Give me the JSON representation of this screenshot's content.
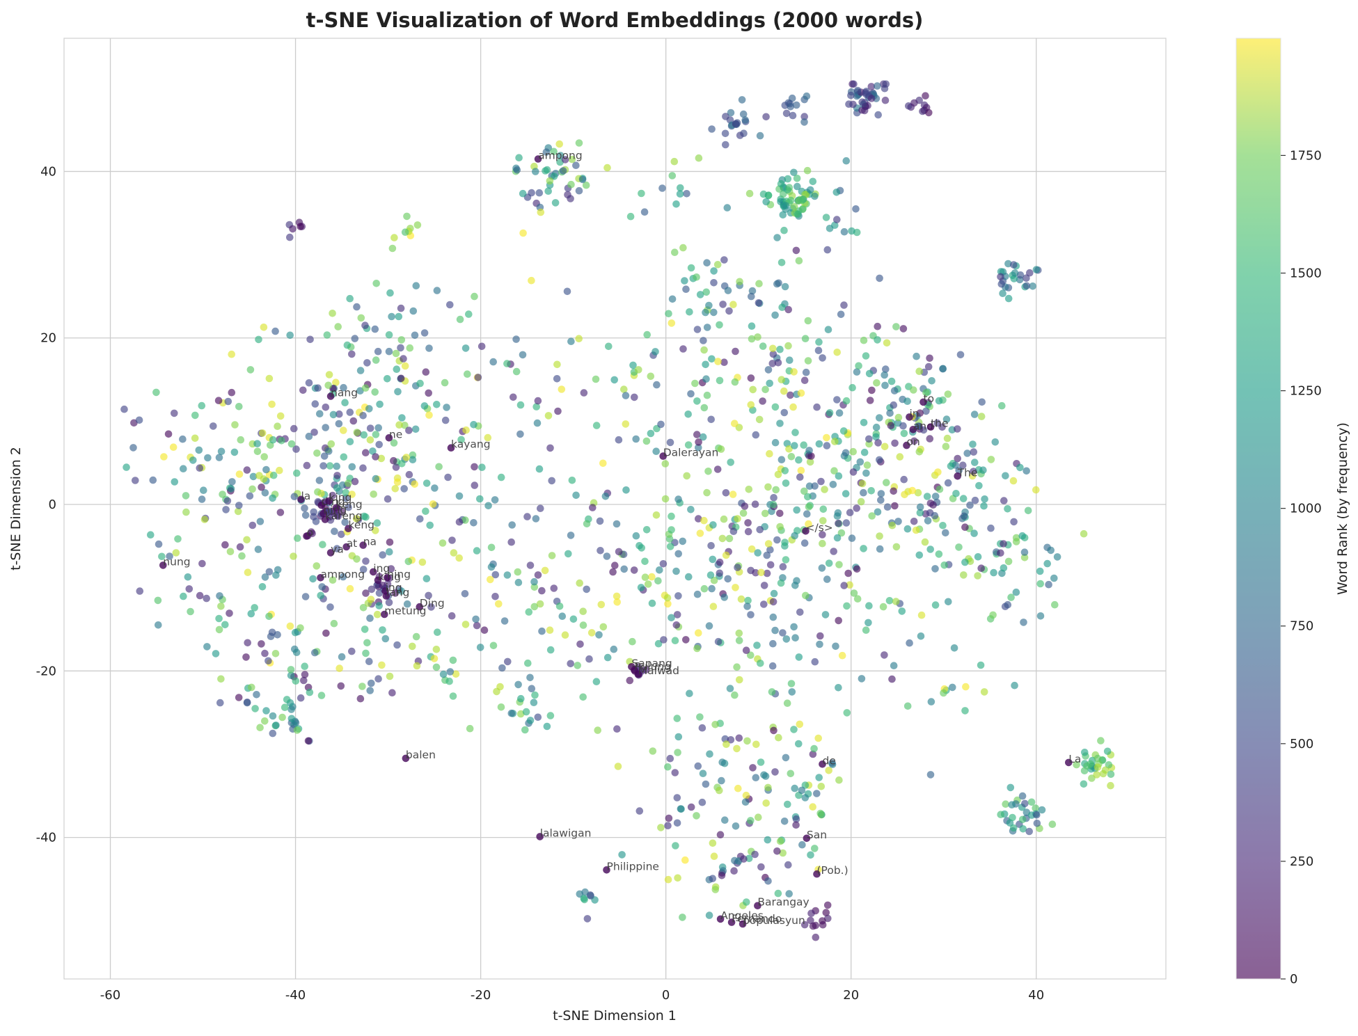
{
  "chart_data": {
    "type": "scatter",
    "title": "t-SNE Visualization of Word Embeddings (2000 words)",
    "xlabel": "t-SNE Dimension 1",
    "ylabel": "t-SNE Dimension 2",
    "xlim": [
      -65,
      54
    ],
    "ylim": [
      -57,
      56
    ],
    "xticks": [
      -60,
      -40,
      -20,
      0,
      20,
      40
    ],
    "yticks": [
      -40,
      -20,
      0,
      20,
      40
    ],
    "grid": true,
    "colorbar": {
      "label": "Word Rank (by frequency)",
      "range": [
        0,
        1999
      ],
      "ticks": [
        0,
        250,
        500,
        750,
        1000,
        1250,
        1500,
        1750
      ],
      "colormap": "viridis"
    },
    "annotations": [
      {
        "text": "ampong",
        "x": -13.8,
        "y": 41.5
      },
      {
        "text": "nang",
        "x": -36.2,
        "y": 13.0
      },
      {
        "text": "ne",
        "x": -29.9,
        "y": 8.0
      },
      {
        "text": "kayang",
        "x": -23.2,
        "y": 6.8
      },
      {
        "text": "Dalerayan",
        "x": -0.3,
        "y": 5.8
      },
      {
        "text": "to",
        "x": 27.8,
        "y": 12.3
      },
      {
        "text": "in",
        "x": 26.3,
        "y": 10.5
      },
      {
        "text": "and",
        "x": 26.7,
        "y": 9.0
      },
      {
        "text": "the",
        "x": 28.6,
        "y": 9.3
      },
      {
        "text": "on",
        "x": 26.0,
        "y": 7.1
      },
      {
        "text": "The",
        "x": 31.5,
        "y": 3.4
      },
      {
        "text": "la",
        "x": -39.4,
        "y": 0.6
      },
      {
        "text": "ding",
        "x": -37.2,
        "y": -0.1
      },
      {
        "text": "king",
        "x": -36.4,
        "y": 0.4
      },
      {
        "text": "keng",
        "x": -35.6,
        "y": -0.4
      },
      {
        "text": "ning",
        "x": -37.0,
        "y": -1.1
      },
      {
        "text": "kareng",
        "x": -36.8,
        "y": -1.8
      },
      {
        "text": "keng",
        "x": -34.3,
        "y": -2.9
      },
      {
        "text": "o",
        "x": -38.8,
        "y": -3.8
      },
      {
        "text": "at",
        "x": -34.5,
        "y": -5.1
      },
      {
        "text": "na",
        "x": -32.7,
        "y": -4.9
      },
      {
        "text": "ya",
        "x": -36.2,
        "y": -5.8
      },
      {
        "text": "</s>",
        "x": 15.1,
        "y": -3.2
      },
      {
        "text": "nung",
        "x": -54.3,
        "y": -7.3
      },
      {
        "text": "ampong",
        "x": -37.3,
        "y": -8.8
      },
      {
        "text": "ing",
        "x": -31.6,
        "y": -8.1
      },
      {
        "text": "king",
        "x": -31.1,
        "y": -9.1
      },
      {
        "text": "ning",
        "x": -30.1,
        "y": -8.8
      },
      {
        "text": "ing",
        "x": -30.3,
        "y": -10.4
      },
      {
        "text": "lang",
        "x": -30.2,
        "y": -11.0
      },
      {
        "text": "Ding",
        "x": -26.6,
        "y": -12.3
      },
      {
        "text": "metung",
        "x": -30.4,
        "y": -13.2
      },
      {
        "text": "Sapang",
        "x": -3.7,
        "y": -19.5
      },
      {
        "text": "Pulung",
        "x": -3.4,
        "y": -19.9
      },
      {
        "text": "Malwad",
        "x": -3.0,
        "y": -20.4
      },
      {
        "text": "balen",
        "x": -28.1,
        "y": -30.5
      },
      {
        "text": "La",
        "x": 43.5,
        "y": -31.0
      },
      {
        "text": "de",
        "x": 16.9,
        "y": -31.2
      },
      {
        "text": "lalawigan",
        "x": -13.6,
        "y": -39.9
      },
      {
        "text": "San",
        "x": 15.2,
        "y": -40.1
      },
      {
        "text": "Philippine",
        "x": -6.4,
        "y": -43.9
      },
      {
        "text": "(Pob.)",
        "x": 16.3,
        "y": -44.4
      },
      {
        "text": "Barangay",
        "x": 9.9,
        "y": -48.2
      },
      {
        "text": "Angeles",
        "x": 5.9,
        "y": -49.8
      },
      {
        "text": "Fernando",
        "x": 7.1,
        "y": -50.2
      },
      {
        "text": "populasyun",
        "x": 8.3,
        "y": -50.4
      }
    ],
    "point_groups": [
      {
        "x": 13.6,
        "y": 36.8,
        "n": 60,
        "sigma": 1.3,
        "rank": [
          900,
          1700
        ]
      },
      {
        "x": 21.5,
        "y": 49.1,
        "n": 40,
        "sigma": 1.1,
        "rank": [
          150,
          800
        ]
      },
      {
        "x": 27.0,
        "y": 48.0,
        "n": 10,
        "sigma": 0.8,
        "rank": [
          0,
          400
        ]
      },
      {
        "x": 7.6,
        "y": 45.8,
        "n": 20,
        "sigma": 1.0,
        "rank": [
          300,
          800
        ]
      },
      {
        "x": 14.0,
        "y": 48.2,
        "n": 12,
        "sigma": 0.8,
        "rank": [
          300,
          800
        ]
      },
      {
        "x": 38.0,
        "y": 27.5,
        "n": 25,
        "sigma": 1.3,
        "rank": [
          300,
          1200
        ]
      },
      {
        "x": 46.6,
        "y": -31.3,
        "n": 30,
        "sigma": 1.0,
        "rank": [
          1000,
          1800
        ]
      },
      {
        "x": 38.8,
        "y": -37.3,
        "n": 30,
        "sigma": 1.5,
        "rank": [
          400,
          1600
        ]
      },
      {
        "x": 16.7,
        "y": -50.0,
        "n": 12,
        "sigma": 0.9,
        "rank": [
          0,
          200
        ]
      },
      {
        "x": -12.2,
        "y": 39.4,
        "n": 45,
        "sigma": 2.4,
        "rank": [
          200,
          1900
        ]
      },
      {
        "x": 0.6,
        "y": 36.9,
        "n": 12,
        "sigma": 2.3,
        "rank": [
          400,
          1800
        ]
      },
      {
        "x": -41.1,
        "y": -26.0,
        "n": 20,
        "sigma": 1.4,
        "rank": [
          500,
          1700
        ]
      },
      {
        "x": -36.5,
        "y": -1.3,
        "n": 30,
        "sigma": 1.4,
        "rank": [
          0,
          600
        ]
      },
      {
        "x": -30.6,
        "y": -10.1,
        "n": 16,
        "sigma": 1.3,
        "rank": [
          0,
          500
        ]
      },
      {
        "x": -3.0,
        "y": -19.8,
        "n": 8,
        "sigma": 0.5,
        "rank": [
          0,
          300
        ]
      },
      {
        "x": -15.0,
        "y": -23.3,
        "n": 20,
        "sigma": 1.6,
        "rank": [
          400,
          1800
        ]
      },
      {
        "x": -8.5,
        "y": -47.8,
        "n": 8,
        "sigma": 0.8,
        "rank": [
          200,
          1600
        ]
      },
      {
        "x": -31.8,
        "y": 22.8,
        "n": 25,
        "sigma": 2.8,
        "rank": [
          300,
          1800
        ]
      },
      {
        "x": -39.8,
        "y": 33.1,
        "n": 6,
        "sigma": 0.6,
        "rank": [
          0,
          400
        ]
      },
      {
        "x": -28.4,
        "y": 32.4,
        "n": 8,
        "sigma": 1.0,
        "rank": [
          1200,
          1999
        ]
      },
      {
        "x": 5.0,
        "y": 26.4,
        "n": 30,
        "sigma": 2.6,
        "rank": [
          300,
          1700
        ]
      },
      {
        "x": 27.6,
        "y": 11.3,
        "n": 45,
        "sigma": 2.6,
        "rank": [
          0,
          1800
        ]
      },
      {
        "x": 8.1,
        "y": -40.8,
        "n": 70,
        "sigma": 4.8,
        "rank": [
          0,
          1999
        ]
      },
      {
        "x": 14.1,
        "y": -33.9,
        "n": 35,
        "sigma": 3.4,
        "rank": [
          100,
          1999
        ]
      },
      {
        "x": 4.0,
        "y": -29.0,
        "n": 25,
        "sigma": 2.8,
        "rank": [
          200,
          1999
        ]
      },
      {
        "x": 37.4,
        "y": -9.1,
        "n": 35,
        "sigma": 3.0,
        "rank": [
          300,
          1700
        ]
      },
      {
        "x": 29.0,
        "y": -22.6,
        "n": 16,
        "sigma": 4.2,
        "rank": [
          300,
          1999
        ]
      },
      {
        "x": 18.6,
        "y": 34.5,
        "n": 14,
        "sigma": 2.4,
        "rank": [
          200,
          1300
        ]
      },
      {
        "x": -45.2,
        "y": 3.6,
        "n": 120,
        "sigma": 6.6,
        "rank": [
          0,
          1999
        ]
      },
      {
        "x": -33.4,
        "y": 7.7,
        "n": 120,
        "sigma": 6.1,
        "rank": [
          0,
          1999
        ]
      },
      {
        "x": -33.7,
        "y": -14.7,
        "n": 70,
        "sigma": 5.7,
        "rank": [
          0,
          1999
        ]
      },
      {
        "x": -20.9,
        "y": -1.2,
        "n": 45,
        "sigma": 6.8,
        "rank": [
          0,
          1999
        ]
      },
      {
        "x": -13.4,
        "y": 13.8,
        "n": 35,
        "sigma": 6.0,
        "rank": [
          0,
          1999
        ]
      },
      {
        "x": -10.4,
        "y": -10.6,
        "n": 40,
        "sigma": 5.4,
        "rank": [
          0,
          1999
        ]
      },
      {
        "x": 3.2,
        "y": 10.5,
        "n": 60,
        "sigma": 6.1,
        "rank": [
          0,
          1999
        ]
      },
      {
        "x": 8.0,
        "y": -6.4,
        "n": 110,
        "sigma": 6.3,
        "rank": [
          0,
          1999
        ]
      },
      {
        "x": 20.2,
        "y": 2.6,
        "n": 120,
        "sigma": 6.2,
        "rank": [
          0,
          1999
        ]
      },
      {
        "x": 30.2,
        "y": 0.8,
        "n": 100,
        "sigma": 5.5,
        "rank": [
          0,
          1999
        ]
      },
      {
        "x": 14.8,
        "y": -15.1,
        "n": 70,
        "sigma": 5.9,
        "rank": [
          0,
          1999
        ]
      },
      {
        "x": 10.9,
        "y": 19.6,
        "n": 60,
        "sigma": 5.4,
        "rank": [
          0,
          1999
        ]
      },
      {
        "x": -0.8,
        "y": -8.8,
        "n": 40,
        "sigma": 6.2,
        "rank": [
          0,
          1999
        ]
      },
      {
        "x": -50.1,
        "y": -10.5,
        "n": 25,
        "sigma": 4.5,
        "rank": [
          0,
          1999
        ]
      },
      {
        "x": -41.8,
        "y": -19.7,
        "n": 25,
        "sigma": 4.2,
        "rank": [
          0,
          1999
        ]
      },
      {
        "x": -28.0,
        "y": 15.5,
        "n": 30,
        "sigma": 4.6,
        "rank": [
          0,
          1999
        ]
      },
      {
        "x": -23.2,
        "y": -17.2,
        "n": 25,
        "sigma": 4.8,
        "rank": [
          0,
          1999
        ]
      },
      {
        "x": 22.3,
        "y": 19.8,
        "n": 25,
        "sigma": 4.0,
        "rank": [
          0,
          1999
        ]
      }
    ]
  }
}
